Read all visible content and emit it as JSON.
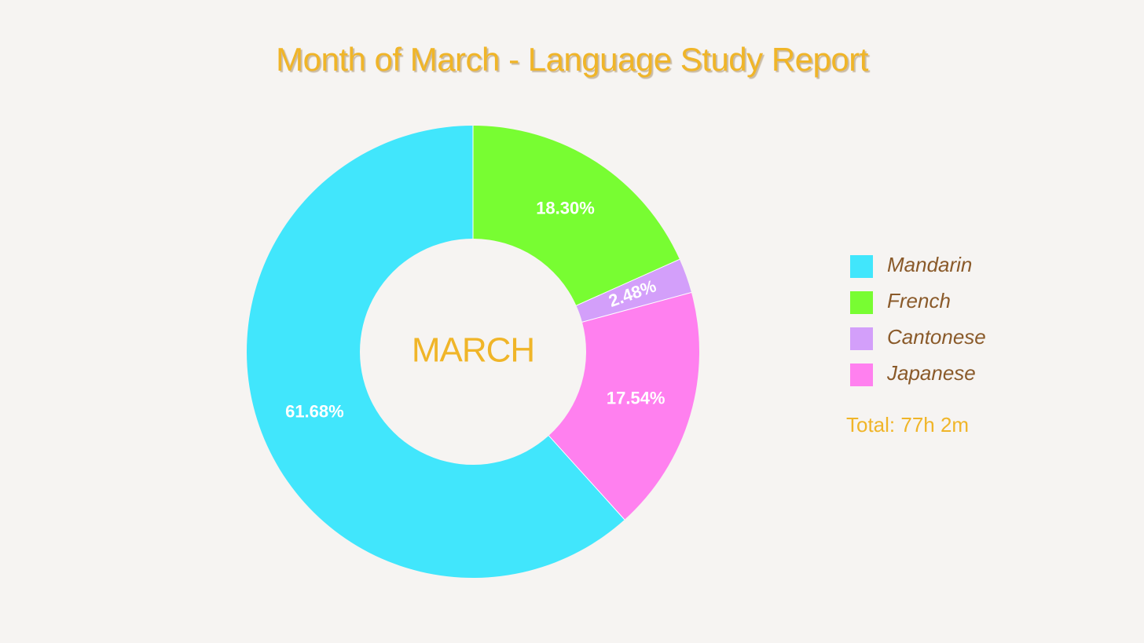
{
  "chart_data": {
    "type": "pie",
    "title": "Month of March - Language Study Report",
    "center_label": "MARCH",
    "slices": [
      {
        "name": "Mandarin",
        "value": 61.68,
        "label": "61.68%",
        "color": "#41e6fc"
      },
      {
        "name": "French",
        "value": 18.3,
        "label": "18.30%",
        "color": "#78fd32"
      },
      {
        "name": "Cantonese",
        "value": 2.48,
        "label": "2.48%",
        "color": "#d39ffa"
      },
      {
        "name": "Japanese",
        "value": 17.54,
        "label": "17.54%",
        "color": "#ff80ef"
      }
    ],
    "start_order": [
      "French",
      "Cantonese",
      "Japanese",
      "Mandarin"
    ],
    "legend_placement": "right",
    "total_text": "Total: 77h 2m"
  },
  "colors": {
    "background": "#f6f4f2",
    "title": "#f0b528",
    "legend_text": "#8a5a2a"
  }
}
